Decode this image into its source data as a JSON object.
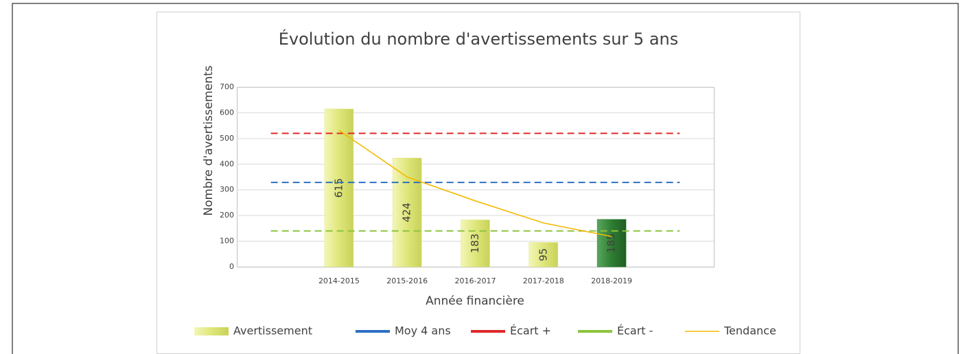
{
  "chart_data": {
    "type": "bar",
    "title": "Évolution du nombre d'avertissements sur 5 ans",
    "x_label": "Année financière",
    "y_label": "Nombre d'avertissements",
    "categories": [
      null,
      "2014-2015",
      "2015-2016",
      "2016-2017",
      "2017-2018",
      "2018-2019",
      null
    ],
    "ylim": [
      0,
      700
    ],
    "yticks": [
      0,
      100,
      200,
      300,
      400,
      500,
      600,
      700
    ],
    "grid": true,
    "legend": "bottom",
    "series": [
      {
        "name": "Avertissement",
        "type": "bar",
        "color": "#dfe67a",
        "colors": [
          null,
          "#dfe67a",
          "#dfe67a",
          "#dfe67a",
          "#dfe67a",
          "#2e7d32",
          null
        ],
        "values": [
          null,
          615,
          424,
          183,
          95,
          185,
          null
        ]
      },
      {
        "name": "Moy 4 ans",
        "type": "line",
        "dash": true,
        "color": "#2f6fc4",
        "values": [
          329,
          329,
          329,
          329,
          329,
          329,
          329
        ]
      },
      {
        "name": "Écart +",
        "type": "line",
        "dash": true,
        "color": "#e0282a",
        "values": [
          520,
          520,
          520,
          520,
          520,
          520,
          520
        ]
      },
      {
        "name": "Écart -",
        "type": "line",
        "dash": true,
        "color": "#8cc43c",
        "values": [
          140,
          140,
          140,
          140,
          140,
          140,
          140
        ]
      },
      {
        "name": "Tendance",
        "type": "line",
        "dash": false,
        "color": "#f5b800",
        "values": [
          null,
          532,
          350,
          257,
          171,
          118,
          null
        ]
      }
    ]
  }
}
